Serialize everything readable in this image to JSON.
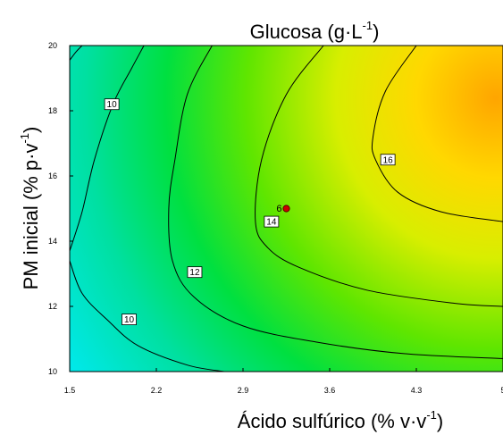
{
  "chart_data": {
    "type": "heatmap",
    "title": {
      "main": "Glucosa (g·L",
      "sup": "-1",
      "close": ")"
    },
    "xlabel": {
      "main": "Ácido sulfúrico (% v·v",
      "sup": "-1",
      "close": ")"
    },
    "ylabel": {
      "main": "PM inicial (% p·v",
      "sup": "-1",
      "close": ")"
    },
    "xlim": [
      1.5,
      5.0
    ],
    "ylim": [
      10,
      20
    ],
    "x_ticks": [
      "1.5",
      "2.2",
      "2.9",
      "3.6",
      "4.3",
      "5"
    ],
    "y_ticks": [
      "10",
      "12",
      "14",
      "16",
      "18",
      "20"
    ],
    "color_scale": [
      "#00e6e6",
      "#00e060",
      "#33e600",
      "#b0e600",
      "#ffff00",
      "#ffa500"
    ],
    "contours": [
      {
        "level": 10,
        "points": [
          [
            1.5,
            19.55
          ],
          [
            1.55,
            19.8
          ],
          [
            1.6,
            20.0
          ]
        ]
      },
      {
        "level": 10,
        "points": [
          [
            1.5,
            13.7
          ],
          [
            1.6,
            14.9
          ],
          [
            1.7,
            16.5
          ],
          [
            1.85,
            18.2
          ],
          [
            2.0,
            19.3
          ],
          [
            2.1,
            20.0
          ]
        ]
      },
      {
        "level": 10,
        "points": [
          [
            1.5,
            13.4
          ],
          [
            1.6,
            12.4
          ],
          [
            1.8,
            11.6
          ],
          [
            2.05,
            10.8
          ],
          [
            2.45,
            10.2
          ],
          [
            2.75,
            10.0
          ]
        ]
      },
      {
        "level": 12,
        "points": [
          [
            2.65,
            20.0
          ],
          [
            2.45,
            18.5
          ],
          [
            2.35,
            16.5
          ],
          [
            2.3,
            15.0
          ],
          [
            2.33,
            13.4
          ],
          [
            2.5,
            12.3
          ],
          [
            2.9,
            11.4
          ],
          [
            3.5,
            10.9
          ],
          [
            4.2,
            10.55
          ],
          [
            5.0,
            10.4
          ]
        ]
      },
      {
        "level": 14,
        "points": [
          [
            3.55,
            20.0
          ],
          [
            3.25,
            18.5
          ],
          [
            3.05,
            16.5
          ],
          [
            3.0,
            14.6
          ],
          [
            3.1,
            13.8
          ],
          [
            3.35,
            13.2
          ],
          [
            3.9,
            12.5
          ],
          [
            4.6,
            12.1
          ],
          [
            5.0,
            12.0
          ]
        ]
      },
      {
        "level": 16,
        "points": [
          [
            4.3,
            20.0
          ],
          [
            4.05,
            18.6
          ],
          [
            3.95,
            17.2
          ],
          [
            3.97,
            16.5
          ],
          [
            4.15,
            15.5
          ],
          [
            4.5,
            14.9
          ],
          [
            5.0,
            14.6
          ]
        ]
      }
    ],
    "contour_labels": [
      {
        "text": "10",
        "x": 1.84,
        "y": 18.2
      },
      {
        "text": "10",
        "x": 1.98,
        "y": 11.6
      },
      {
        "text": "12",
        "x": 2.51,
        "y": 13.05
      },
      {
        "text": "14",
        "x": 3.13,
        "y": 14.6
      },
      {
        "text": "16",
        "x": 4.07,
        "y": 16.5
      }
    ],
    "design_points": [
      {
        "label": "6",
        "x": 3.25,
        "y": 15.0,
        "color": "#cc0000"
      }
    ]
  }
}
